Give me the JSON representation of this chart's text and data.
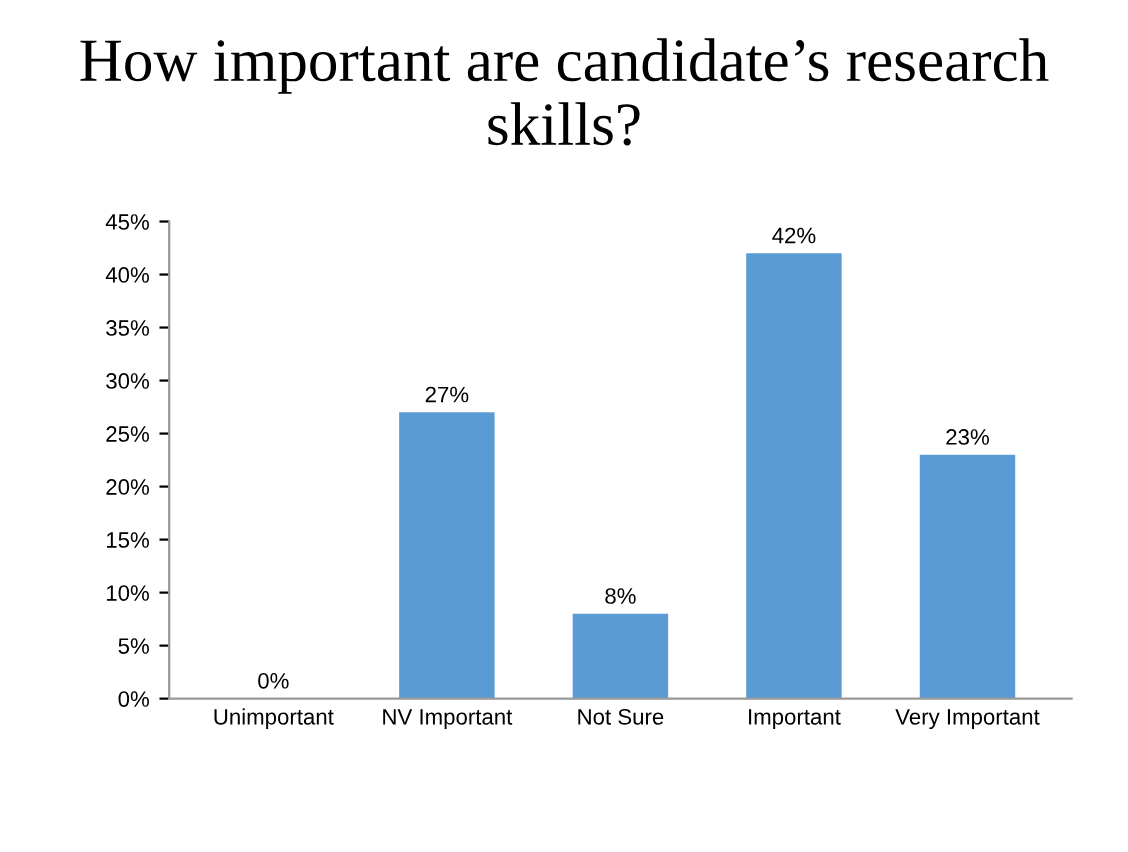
{
  "chart_data": {
    "type": "bar",
    "title": "How important are candidate’s research skills?",
    "categories": [
      "Unimportant",
      "NV Important",
      "Not Sure",
      "Important",
      "Very Important"
    ],
    "values": [
      0,
      27,
      8,
      42,
      23
    ],
    "value_labels": [
      "0%",
      "27%",
      "8%",
      "42%",
      "23%"
    ],
    "color": "#5b9bd5",
    "ylim": [
      0,
      45
    ],
    "yticks": [
      {
        "value": 0,
        "label": "0%"
      },
      {
        "value": 5,
        "label": "5%"
      },
      {
        "value": 10,
        "label": "10%"
      },
      {
        "value": 15,
        "label": "15%"
      },
      {
        "value": 20,
        "label": "20%"
      },
      {
        "value": 25,
        "label": "25%"
      },
      {
        "value": 30,
        "label": "30%"
      },
      {
        "value": 35,
        "label": "35%"
      },
      {
        "value": 40,
        "label": "40%"
      },
      {
        "value": 45,
        "label": "45%"
      }
    ],
    "grid": false
  }
}
